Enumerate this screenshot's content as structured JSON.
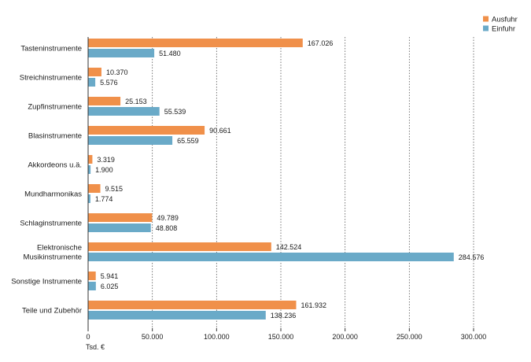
{
  "chart_data": {
    "type": "bar",
    "orientation": "horizontal",
    "categories": [
      [
        "Tasteninstrumente"
      ],
      [
        "Streichinstrumente"
      ],
      [
        "Zupfinstrumente"
      ],
      [
        "Blasinstrumente"
      ],
      [
        "Akkordeons u.ä."
      ],
      [
        "Mundharmonikas"
      ],
      [
        "Schlaginstrumente"
      ],
      [
        "Elektronische",
        "Musikinstrumente"
      ],
      [
        "Sonstige Instrumente"
      ],
      [
        "Teile und Zubehör"
      ]
    ],
    "series": [
      {
        "name": "Ausfuhr",
        "color": "#f0904a",
        "values": [
          167026,
          10370,
          25153,
          90661,
          3319,
          9515,
          49789,
          142524,
          5941,
          161932
        ],
        "labels": [
          "167.026",
          "10.370",
          "25.153",
          "90.661",
          "3.319",
          "9.515",
          "49.789",
          "142.524",
          "5.941",
          "161.932"
        ]
      },
      {
        "name": "Einfuhr",
        "color": "#6aaac8",
        "values": [
          51480,
          5576,
          55539,
          65559,
          1900,
          1774,
          48808,
          284576,
          6025,
          138236
        ],
        "labels": [
          "51.480",
          "5.576",
          "55.539",
          "65.559",
          "1.900",
          "1.774",
          "48.808",
          "284.576",
          "6.025",
          "138.236"
        ]
      }
    ],
    "xlim": [
      0,
      300000
    ],
    "xticks": [
      0,
      50000,
      100000,
      150000,
      200000,
      250000,
      300000
    ],
    "xtick_labels": [
      "0",
      "50.000",
      "100.000",
      "150.000",
      "200.000",
      "250.000",
      "300.000"
    ],
    "xlabel": "Tsd. €",
    "grid": "vertical-dotted",
    "legend_position": "top-right"
  }
}
